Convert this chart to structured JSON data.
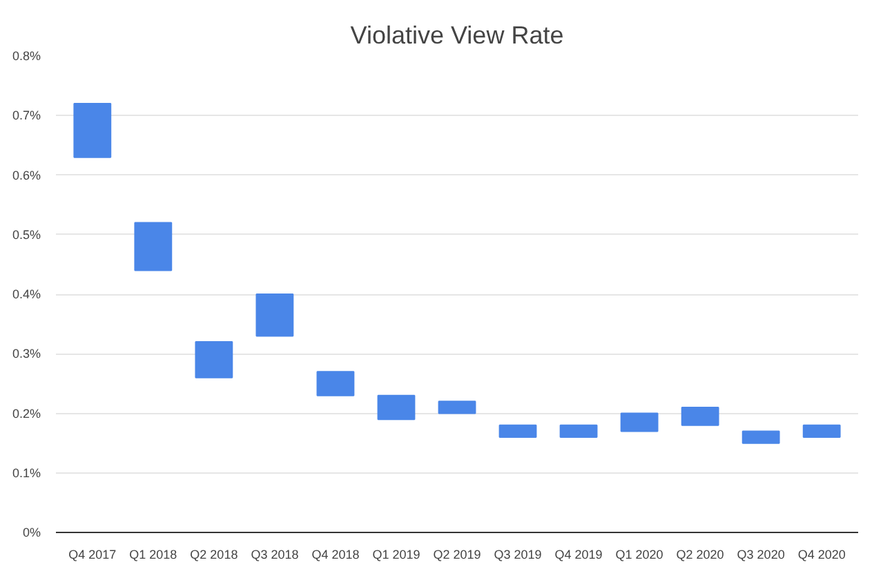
{
  "chart_data": {
    "type": "bar",
    "title": "Violative View Rate",
    "categories": [
      "Q4 2017",
      "Q1 2018",
      "Q2 2018",
      "Q3 2018",
      "Q4 2018",
      "Q1 2019",
      "Q2 2019",
      "Q3 2019",
      "Q4 2019",
      "Q1 2020",
      "Q2 2020",
      "Q3 2020",
      "Q4 2020"
    ],
    "base": [
      0.63,
      0.44,
      0.26,
      0.33,
      0.23,
      0.19,
      0.2,
      0.16,
      0.16,
      0.17,
      0.18,
      0.15,
      0.16
    ],
    "values": [
      0.09,
      0.08,
      0.06,
      0.07,
      0.04,
      0.04,
      0.02,
      0.02,
      0.02,
      0.03,
      0.03,
      0.02,
      0.02
    ],
    "color": "#4a86e8",
    "ylim": [
      0,
      0.8
    ],
    "yticks": [
      {
        "value": 0,
        "label": "0%"
      },
      {
        "value": 0.1,
        "label": "0.1%"
      },
      {
        "value": 0.2,
        "label": "0.2%"
      },
      {
        "value": 0.3,
        "label": "0.3%"
      },
      {
        "value": 0.4,
        "label": "0.4%"
      },
      {
        "value": 0.5,
        "label": "0.5%"
      },
      {
        "value": 0.6,
        "label": "0.6%"
      },
      {
        "value": 0.7,
        "label": "0.7%"
      },
      {
        "value": 0.8,
        "label": "0.8%"
      }
    ],
    "grid": "y"
  }
}
